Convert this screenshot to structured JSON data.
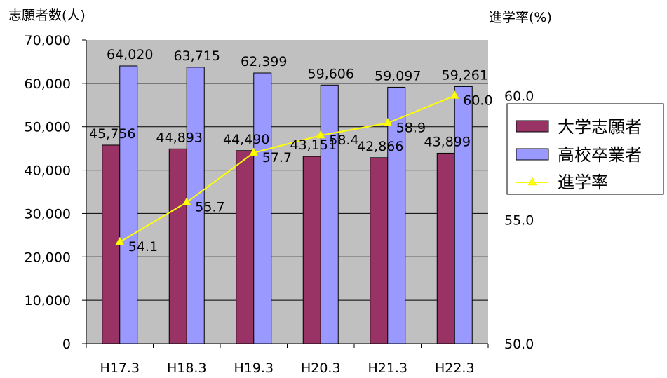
{
  "chart_data": {
    "type": "bar",
    "categories": [
      "H17.3",
      "H18.3",
      "H19.3",
      "H20.3",
      "H21.3",
      "H22.3"
    ],
    "left_axis_title": "志願者数(人)",
    "right_axis_title": "進学率(%)",
    "y_left_ticks": [
      "70,000",
      "60,000",
      "50,000",
      "40,000",
      "30,000",
      "20,000",
      "10,000",
      "0"
    ],
    "y_right_ticks": [
      "60.0",
      "55.0",
      "50.0"
    ],
    "y_left_lim": [
      0,
      70000
    ],
    "y_right_lim": [
      50,
      62.25
    ],
    "series": [
      {
        "name": "大学志願者",
        "type": "bar",
        "axis": "left",
        "color": "#993366",
        "values": [
          45756,
          44893,
          44490,
          43151,
          42866,
          43899
        ],
        "labels": [
          "45,756",
          "44,893",
          "44,490",
          "43,151",
          "42,866",
          "43,899"
        ]
      },
      {
        "name": "高校卒業者",
        "type": "bar",
        "axis": "left",
        "color": "#9999FF",
        "values": [
          64020,
          63715,
          62399,
          59606,
          59097,
          59261
        ],
        "labels": [
          "64,020",
          "63,715",
          "62,399",
          "59,606",
          "59,097",
          "59,261"
        ]
      },
      {
        "name": "進学率",
        "type": "line",
        "axis": "right",
        "color": "#FFFF00",
        "marker": "triangle",
        "values": [
          54.1,
          55.7,
          57.7,
          58.4,
          58.9,
          60.0
        ],
        "labels": [
          "54.1",
          "55.7",
          "57.7",
          "58.4",
          "58.9",
          "60.0"
        ]
      }
    ],
    "plot_background": "#C0C0C0",
    "grid": true,
    "legend_position": "right"
  }
}
